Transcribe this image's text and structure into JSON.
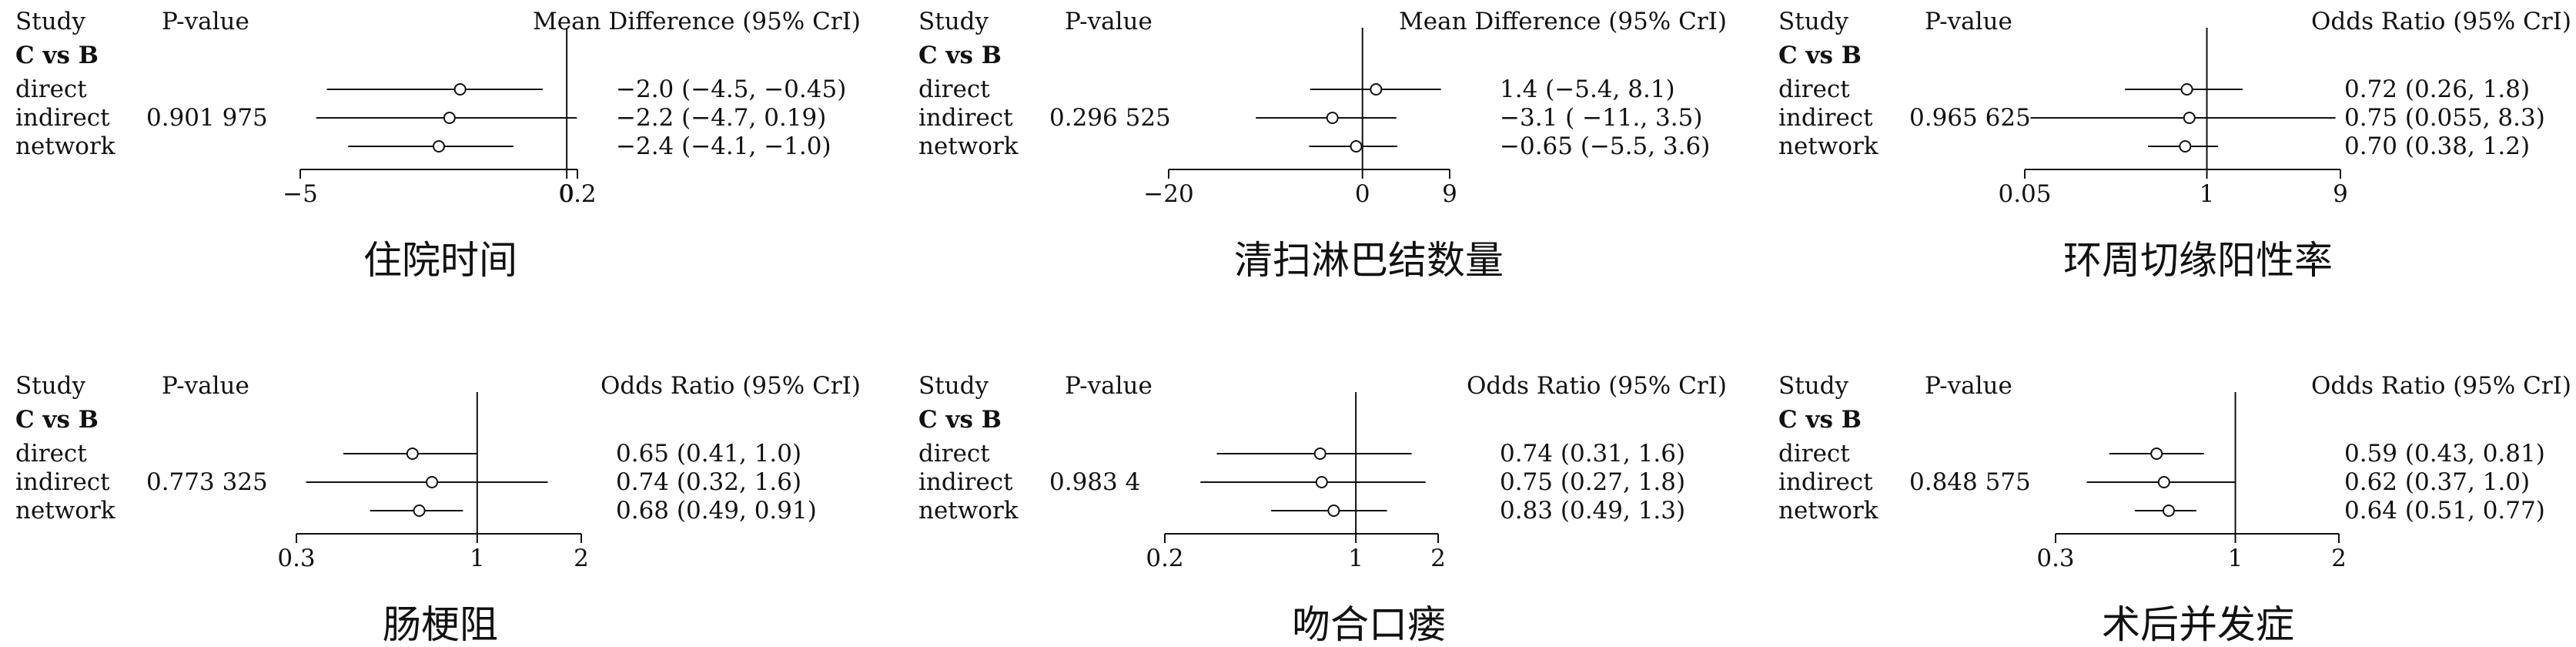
{
  "headers": {
    "study": "Study",
    "pvalue": "P-value"
  },
  "comparison": "C vs B",
  "rows": [
    "direct",
    "indirect",
    "network"
  ],
  "chart_data": [
    {
      "type": "forest",
      "title": "住院时间",
      "measure": "Mean Difference (95% CrI)",
      "pvalue": "0.901 975",
      "scale": "linear",
      "xlim": [
        -5,
        0.2
      ],
      "ref": 0,
      "ticks": [
        {
          "v": -5,
          "t": "−5"
        },
        {
          "v": 0,
          "t": "0"
        },
        {
          "v": 0.2,
          "t": "0.2"
        }
      ],
      "rows": [
        {
          "est": -2.0,
          "lo": -4.5,
          "hi": -0.45,
          "text": "−2.0 (−4.5, −0.45)"
        },
        {
          "est": -2.2,
          "lo": -4.7,
          "hi": 0.19,
          "text": "−2.2 (−4.7, 0.19)"
        },
        {
          "est": -2.4,
          "lo": -4.1,
          "hi": -1.0,
          "text": "−2.4 (−4.1, −1.0)"
        }
      ]
    },
    {
      "type": "forest",
      "title": "清扫淋巴结数量",
      "measure": "Mean Difference (95% CrI)",
      "pvalue": "0.296 525",
      "scale": "linear",
      "xlim": [
        -20,
        9
      ],
      "ref": 0,
      "ticks": [
        {
          "v": -20,
          "t": "−20"
        },
        {
          "v": 0,
          "t": "0"
        },
        {
          "v": 9,
          "t": "9"
        }
      ],
      "rows": [
        {
          "est": 1.4,
          "lo": -5.4,
          "hi": 8.1,
          "text": "1.4 (−5.4, 8.1)"
        },
        {
          "est": -3.1,
          "lo": -11,
          "hi": 3.5,
          "text": "−3.1 ( −11., 3.5)"
        },
        {
          "est": -0.65,
          "lo": -5.5,
          "hi": 3.6,
          "text": "−0.65 (−5.5, 3.6)"
        }
      ]
    },
    {
      "type": "forest",
      "title": "环周切缘阳性率",
      "measure": "Odds Ratio (95% CrI)",
      "pvalue": "0.965 625",
      "scale": "log",
      "xlim": [
        0.05,
        9
      ],
      "ref": 1,
      "ticks": [
        {
          "v": 0.05,
          "t": "0.05"
        },
        {
          "v": 1,
          "t": "1"
        },
        {
          "v": 9,
          "t": "9"
        }
      ],
      "rows": [
        {
          "est": 0.72,
          "lo": 0.26,
          "hi": 1.8,
          "text": "0.72 (0.26, 1.8)"
        },
        {
          "est": 0.75,
          "lo": 0.055,
          "hi": 8.3,
          "text": "0.75 (0.055, 8.3)"
        },
        {
          "est": 0.7,
          "lo": 0.38,
          "hi": 1.2,
          "text": "0.70 (0.38, 1.2)"
        }
      ]
    },
    {
      "type": "forest",
      "title": "肠梗阻",
      "measure": "Odds Ratio (95% CrI)",
      "pvalue": "0.773 325",
      "scale": "log",
      "xlim": [
        0.3,
        2
      ],
      "ref": 1,
      "ticks": [
        {
          "v": 0.3,
          "t": "0.3"
        },
        {
          "v": 1,
          "t": "1"
        },
        {
          "v": 2,
          "t": "2"
        }
      ],
      "rows": [
        {
          "est": 0.65,
          "lo": 0.41,
          "hi": 1.0,
          "text": "0.65 (0.41, 1.0)"
        },
        {
          "est": 0.74,
          "lo": 0.32,
          "hi": 1.6,
          "text": "0.74 (0.32, 1.6)"
        },
        {
          "est": 0.68,
          "lo": 0.49,
          "hi": 0.91,
          "text": "0.68 (0.49, 0.91)"
        }
      ]
    },
    {
      "type": "forest",
      "title": "吻合口瘘",
      "measure": "Odds Ratio (95% CrI)",
      "pvalue": "0.983 4",
      "scale": "log",
      "xlim": [
        0.2,
        2
      ],
      "ref": 1,
      "ticks": [
        {
          "v": 0.2,
          "t": "0.2"
        },
        {
          "v": 1,
          "t": "1"
        },
        {
          "v": 2,
          "t": "2"
        }
      ],
      "rows": [
        {
          "est": 0.74,
          "lo": 0.31,
          "hi": 1.6,
          "text": "0.74 (0.31, 1.6)"
        },
        {
          "est": 0.75,
          "lo": 0.27,
          "hi": 1.8,
          "text": "0.75 (0.27, 1.8)"
        },
        {
          "est": 0.83,
          "lo": 0.49,
          "hi": 1.3,
          "text": "0.83 (0.49, 1.3)"
        }
      ]
    },
    {
      "type": "forest",
      "title": "术后并发症",
      "measure": "Odds Ratio (95% CrI)",
      "pvalue": "0.848 575",
      "scale": "log",
      "xlim": [
        0.3,
        2
      ],
      "ref": 1,
      "ticks": [
        {
          "v": 0.3,
          "t": "0.3"
        },
        {
          "v": 1,
          "t": "1"
        },
        {
          "v": 2,
          "t": "2"
        }
      ],
      "rows": [
        {
          "est": 0.59,
          "lo": 0.43,
          "hi": 0.81,
          "text": "0.59 (0.43, 0.81)"
        },
        {
          "est": 0.62,
          "lo": 0.37,
          "hi": 1.0,
          "text": "0.62 (0.37, 1.0)"
        },
        {
          "est": 0.64,
          "lo": 0.51,
          "hi": 0.77,
          "text": "0.64 (0.51, 0.77)"
        }
      ]
    }
  ]
}
